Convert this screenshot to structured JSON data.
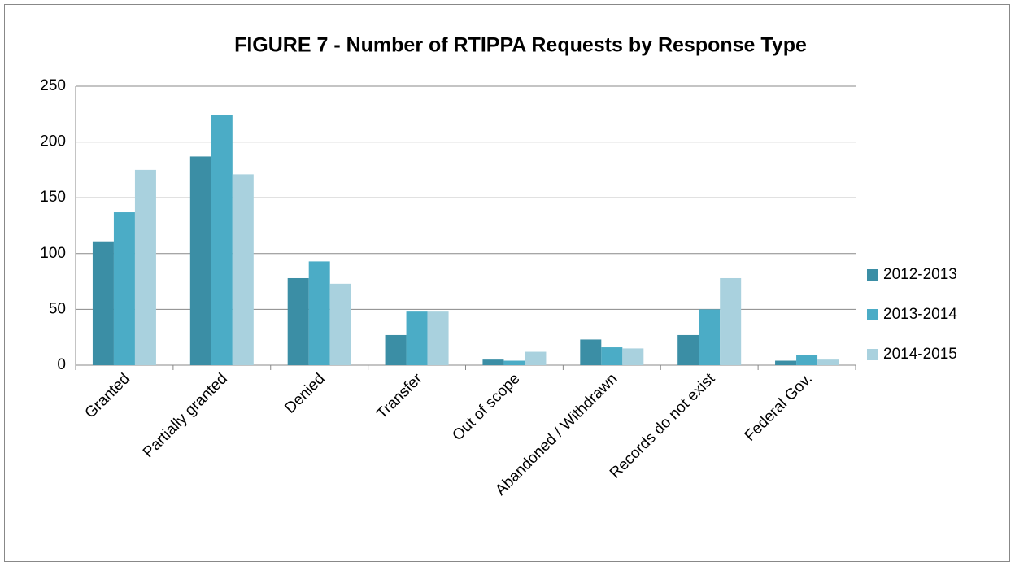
{
  "chart_data": {
    "type": "bar",
    "title": "FIGURE 7 - Number of RTIPPA Requests by Response  Type",
    "categories": [
      "Granted",
      "Partially granted",
      "Denied",
      "Transfer",
      "Out of scope",
      "Abandoned / Withdrawn",
      "Records do not exist",
      "Federal Gov."
    ],
    "series": [
      {
        "name": "2012-2013",
        "color": "#3b8ea5",
        "values": [
          111,
          187,
          78,
          27,
          5,
          23,
          27,
          4
        ]
      },
      {
        "name": "2013-2014",
        "color": "#4bacc6",
        "values": [
          137,
          224,
          93,
          48,
          4,
          16,
          50,
          9
        ]
      },
      {
        "name": "2014-2015",
        "color": "#a9d1de",
        "values": [
          175,
          171,
          73,
          48,
          12,
          15,
          78,
          5
        ]
      }
    ],
    "ylim": [
      0,
      250
    ],
    "yticks": [
      0,
      50,
      100,
      150,
      200,
      250
    ],
    "grid": true,
    "legend": "right"
  }
}
